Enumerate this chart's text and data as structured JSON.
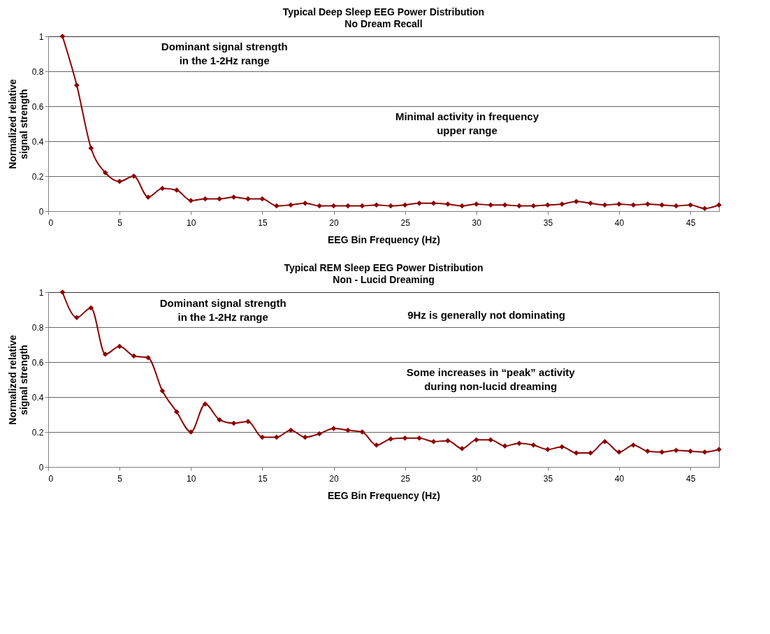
{
  "chart_data": [
    {
      "type": "line",
      "title": "Typical Deep Sleep EEG Power Distribution",
      "subtitle": "No Dream Recall",
      "xlabel": "EEG Bin Frequency (Hz)",
      "ylabel": "Normalized relative signal strength",
      "x": [
        1,
        2,
        3,
        4,
        5,
        6,
        7,
        8,
        9,
        10,
        11,
        12,
        13,
        14,
        15,
        16,
        17,
        18,
        19,
        20,
        21,
        22,
        23,
        24,
        25,
        26,
        27,
        28,
        29,
        30,
        31,
        32,
        33,
        34,
        35,
        36,
        37,
        38,
        39,
        40,
        41,
        42,
        43,
        44,
        45,
        46,
        47
      ],
      "series": [
        {
          "color": "#8b0000",
          "values": [
            1,
            0.72,
            0.36,
            0.22,
            0.17,
            0.2,
            0.08,
            0.13,
            0.12,
            0.06,
            0.07,
            0.07,
            0.08,
            0.07,
            0.07,
            0.03,
            0.035,
            0.045,
            0.03,
            0.03,
            0.03,
            0.03,
            0.035,
            0.03,
            0.035,
            0.045,
            0.045,
            0.04,
            0.03,
            0.04,
            0.035,
            0.035,
            0.03,
            0.03,
            0.035,
            0.04,
            0.055,
            0.045,
            0.035,
            0.04,
            0.035,
            0.04,
            0.035,
            0.03,
            0.035,
            0.015,
            0.035
          ]
        }
      ],
      "xlim": [
        0,
        47
      ],
      "xticks": [
        0,
        5,
        10,
        15,
        20,
        25,
        30,
        35,
        40,
        45
      ],
      "ylim": [
        0,
        1
      ],
      "yticks": [
        0,
        0.2,
        0.4,
        0.6,
        0.8,
        1
      ],
      "grid": "y",
      "marker": "diamond",
      "line_style": "solid",
      "annotations": [
        "Dominant signal strength\nin the 1-2Hz range",
        "Minimal activity in frequency\nupper range"
      ]
    },
    {
      "type": "line",
      "title": "Typical REM Sleep EEG Power Distribution",
      "subtitle": "Non - Lucid Dreaming",
      "xlabel": "EEG Bin Frequency (Hz)",
      "ylabel": "Normalized relative signal strength",
      "x": [
        1,
        2,
        3,
        4,
        5,
        6,
        7,
        8,
        9,
        10,
        11,
        12,
        13,
        14,
        15,
        16,
        17,
        18,
        19,
        20,
        21,
        22,
        23,
        24,
        25,
        26,
        27,
        28,
        29,
        30,
        31,
        32,
        33,
        34,
        35,
        36,
        37,
        38,
        39,
        40,
        41,
        42,
        43,
        44,
        45,
        46,
        47
      ],
      "series": [
        {
          "color": "#8b0000",
          "values": [
            1,
            0.855,
            0.91,
            0.645,
            0.69,
            0.635,
            0.625,
            0.435,
            0.315,
            0.2,
            0.36,
            0.27,
            0.25,
            0.26,
            0.17,
            0.17,
            0.21,
            0.17,
            0.19,
            0.22,
            0.21,
            0.2,
            0.125,
            0.16,
            0.165,
            0.165,
            0.145,
            0.15,
            0.105,
            0.155,
            0.155,
            0.12,
            0.135,
            0.125,
            0.1,
            0.115,
            0.08,
            0.08,
            0.145,
            0.085,
            0.125,
            0.09,
            0.085,
            0.095,
            0.09,
            0.085,
            0.1
          ]
        }
      ],
      "xlim": [
        0,
        47
      ],
      "xticks": [
        0,
        5,
        10,
        15,
        20,
        25,
        30,
        35,
        40,
        45
      ],
      "ylim": [
        0,
        1
      ],
      "yticks": [
        0,
        0.2,
        0.4,
        0.6,
        0.8,
        1
      ],
      "grid": "y",
      "marker": "diamond",
      "line_style": "solid",
      "annotations": [
        "Dominant signal strength\nin the 1-2Hz range",
        "9Hz is generally not dominating",
        "Some increases in “peak” activity\nduring non-lucid dreaming"
      ]
    }
  ]
}
